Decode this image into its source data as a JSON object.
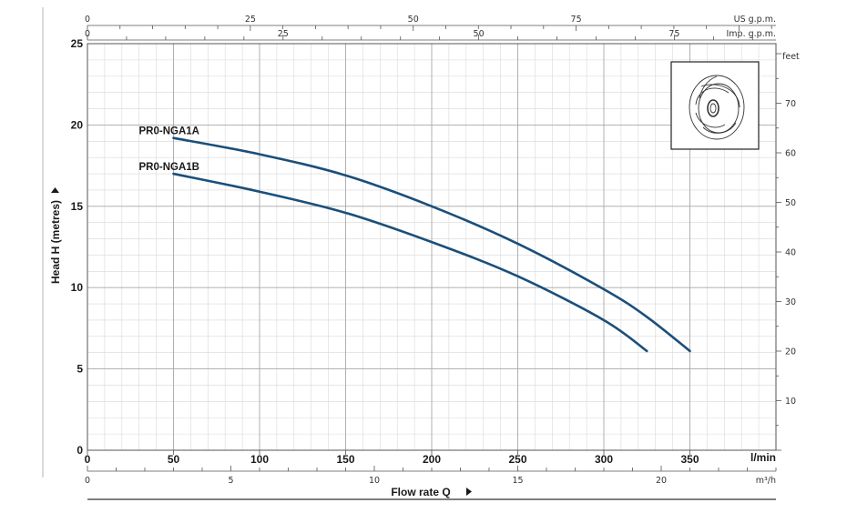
{
  "chart_data": {
    "type": "line",
    "x": {
      "label": "Flow rate Q",
      "unit": "l/min",
      "range": [
        0,
        400
      ],
      "ticks": [
        0,
        50,
        100,
        150,
        200,
        250,
        300,
        350
      ]
    },
    "x_m3h": {
      "unit": "m³/h",
      "range": [
        0,
        24
      ],
      "ticks": [
        0,
        5,
        10,
        15,
        20
      ]
    },
    "x_us_gpm": {
      "unit": "US g.p.m.",
      "range": [
        0,
        105.67
      ],
      "ticks": [
        0,
        25,
        50,
        75
      ]
    },
    "x_imp_gpm": {
      "unit": "Imp. g.p.m.",
      "range": [
        0,
        87.99
      ],
      "ticks": [
        0,
        25,
        50,
        75
      ]
    },
    "y": {
      "label": "Head H (metres)",
      "range": [
        0,
        25
      ],
      "ticks": [
        0,
        5,
        10,
        15,
        20,
        25
      ]
    },
    "y_feet": {
      "unit": "feet",
      "range": [
        0,
        82.02
      ],
      "ticks": [
        10,
        20,
        30,
        40,
        50,
        60,
        70
      ]
    },
    "grid": true,
    "series": [
      {
        "name": "PR0-NGA1A",
        "color": "#1b4f7a",
        "x": [
          50,
          100,
          150,
          200,
          250,
          300,
          325,
          350
        ],
        "y": [
          19.2,
          18.2,
          16.9,
          15.0,
          12.7,
          9.9,
          8.2,
          6.1
        ]
      },
      {
        "name": "PR0-NGA1B",
        "color": "#1b4f7a",
        "x": [
          50,
          100,
          150,
          200,
          250,
          300,
          325
        ],
        "y": [
          17.0,
          15.9,
          14.6,
          12.8,
          10.7,
          8.0,
          6.1
        ]
      }
    ],
    "inset_image": "impeller-drawing"
  }
}
